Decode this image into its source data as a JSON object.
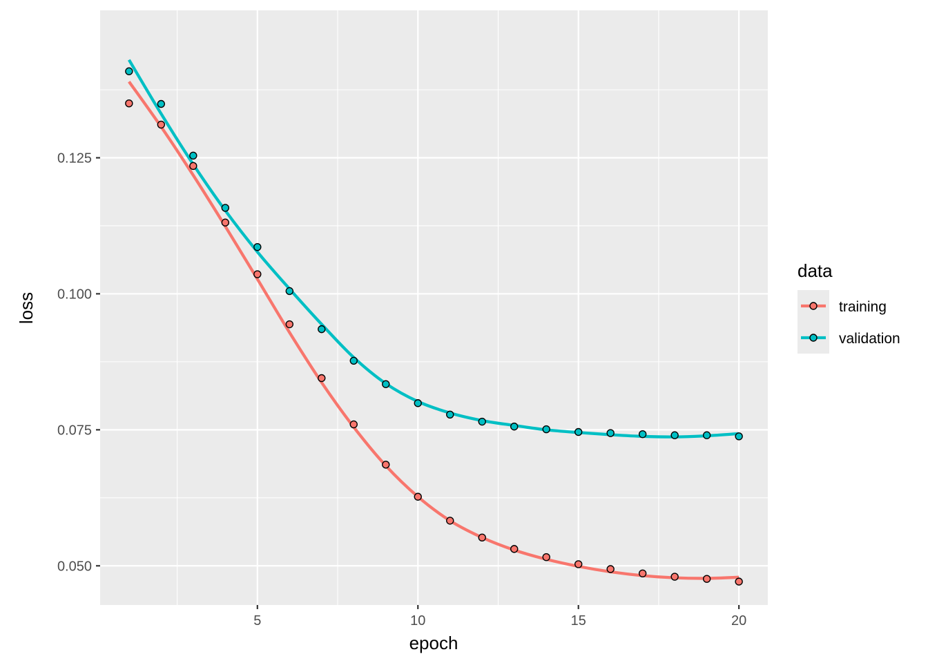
{
  "chart_data": {
    "type": "line",
    "xlabel": "epoch",
    "ylabel": "loss",
    "xlim": [
      0.1,
      20.9
    ],
    "ylim": [
      0.0428,
      0.1521
    ],
    "x_ticks": [
      5,
      10,
      15,
      20
    ],
    "x_tick_labels": [
      "5",
      "10",
      "15",
      "20"
    ],
    "y_ticks": [
      0.05,
      0.075,
      0.1,
      0.125
    ],
    "y_tick_labels": [
      "0.050",
      "0.075",
      "0.100",
      "0.125"
    ],
    "grid": true,
    "legend": {
      "title": "data",
      "position": "right"
    },
    "x": [
      1,
      2,
      3,
      4,
      5,
      6,
      7,
      8,
      9,
      10,
      11,
      12,
      13,
      14,
      15,
      16,
      17,
      18,
      19,
      20
    ],
    "series": [
      {
        "name": "training",
        "color": "#F8766D",
        "values": [
          0.135,
          0.1311,
          0.1235,
          0.1131,
          0.1036,
          0.0944,
          0.0845,
          0.076,
          0.0686,
          0.0627,
          0.0583,
          0.0552,
          0.0531,
          0.0516,
          0.0503,
          0.0494,
          0.0486,
          0.048,
          0.0476,
          0.0471
        ],
        "smooth": [
          0.139,
          0.1307,
          0.1218,
          0.1124,
          0.1027,
          0.0929,
          0.0837,
          0.0755,
          0.0684,
          0.0627,
          0.0583,
          0.0552,
          0.0529,
          0.0512,
          0.0499,
          0.0489,
          0.0482,
          0.0478,
          0.0477,
          0.0479
        ]
      },
      {
        "name": "validation",
        "color": "#00BFC4",
        "values": [
          0.1409,
          0.1349,
          0.1254,
          0.1158,
          0.1086,
          0.1005,
          0.0935,
          0.0877,
          0.0834,
          0.0799,
          0.0778,
          0.0765,
          0.0756,
          0.0751,
          0.0746,
          0.0744,
          0.0742,
          0.074,
          0.074,
          0.0738
        ],
        "smooth": [
          0.143,
          0.1331,
          0.1238,
          0.1153,
          0.1077,
          0.1009,
          0.0944,
          0.0883,
          0.0835,
          0.0802,
          0.0781,
          0.0767,
          0.0758,
          0.075,
          0.0745,
          0.0741,
          0.0738,
          0.0737,
          0.0739,
          0.0743
        ]
      }
    ]
  },
  "colors": {
    "panel_background": "#EBEBEB",
    "grid_line": "#FFFFFF",
    "point_outline": "#000000"
  }
}
